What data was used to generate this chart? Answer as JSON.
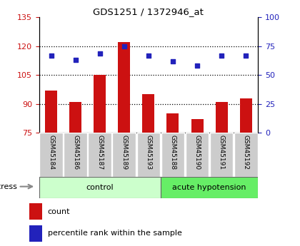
{
  "title": "GDS1251 / 1372946_at",
  "samples": [
    "GSM45184",
    "GSM45186",
    "GSM45187",
    "GSM45189",
    "GSM45193",
    "GSM45188",
    "GSM45190",
    "GSM45191",
    "GSM45192"
  ],
  "bar_values": [
    97,
    91,
    105,
    122,
    95,
    85,
    82,
    91,
    93
  ],
  "dot_values_left": [
    115,
    113,
    116,
    120,
    115,
    112,
    110,
    115,
    115
  ],
  "ylim_left": [
    75,
    135
  ],
  "ylim_right": [
    0,
    100
  ],
  "yticks_left": [
    75,
    90,
    105,
    120,
    135
  ],
  "yticks_right": [
    0,
    25,
    50,
    75,
    100
  ],
  "bar_color": "#cc1111",
  "dot_color": "#2222bb",
  "control_samples": 5,
  "acute_samples": 4,
  "control_label": "control",
  "acute_label": "acute hypotension",
  "stress_label": "stress",
  "legend_count": "count",
  "legend_pct": "percentile rank within the sample",
  "control_bg": "#ccffcc",
  "acute_bg": "#66ee66",
  "sample_bg": "#cccccc",
  "ylabel_left_color": "#cc1111",
  "ylabel_right_color": "#2222bb",
  "hgrid_lines": [
    90,
    105,
    120
  ]
}
